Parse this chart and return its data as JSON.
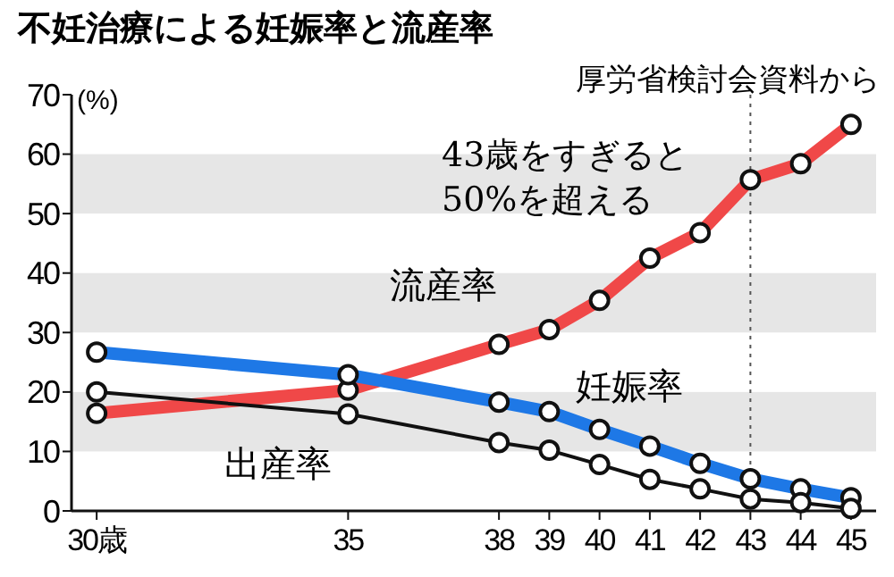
{
  "chart_data": {
    "type": "line",
    "title": "不妊治療による妊娠率と流産率",
    "ylabel": "(%)",
    "annotations": [
      "厚労省検討会資料から",
      "43歳をすぎると\n50%を超える"
    ],
    "x": [
      30,
      35,
      38,
      39,
      40,
      41,
      42,
      43,
      44,
      45
    ],
    "xlim": [
      29.5,
      45.5
    ],
    "xticks": [
      {
        "value": 30,
        "label": "30歳"
      },
      35,
      38,
      39,
      40,
      41,
      42,
      43,
      44,
      45
    ],
    "ylim": [
      0,
      70
    ],
    "yticks": [
      0,
      10,
      20,
      30,
      40,
      50,
      60,
      70
    ],
    "series": [
      {
        "name": "流産率",
        "color": "#f04848",
        "values": [
          16.4,
          20.3,
          28.0,
          30.5,
          35.4,
          42.5,
          46.8,
          55.7,
          58.4,
          65.0
        ]
      },
      {
        "name": "妊娠率",
        "color": "#1e78e6",
        "values": [
          26.7,
          22.9,
          18.3,
          16.7,
          13.7,
          10.9,
          8.0,
          5.4,
          3.7,
          2.2
        ]
      },
      {
        "name": "出産率",
        "color": "#111111",
        "values": [
          20.0,
          16.3,
          11.5,
          10.2,
          7.8,
          5.3,
          3.7,
          2.0,
          1.4,
          0.4
        ]
      }
    ],
    "bands": [
      {
        "axis": "y",
        "from": 10,
        "to": 20,
        "color": "#e6e6e6"
      },
      {
        "axis": "y",
        "from": 30,
        "to": 40,
        "color": "#e6e6e6"
      },
      {
        "axis": "y",
        "from": 50,
        "to": 60,
        "color": "#e6e6e6"
      }
    ],
    "ref_lines": [
      {
        "axis": "x",
        "value": 43,
        "color": "#555555",
        "line_style": "dotted"
      }
    ],
    "marker": "circle"
  }
}
